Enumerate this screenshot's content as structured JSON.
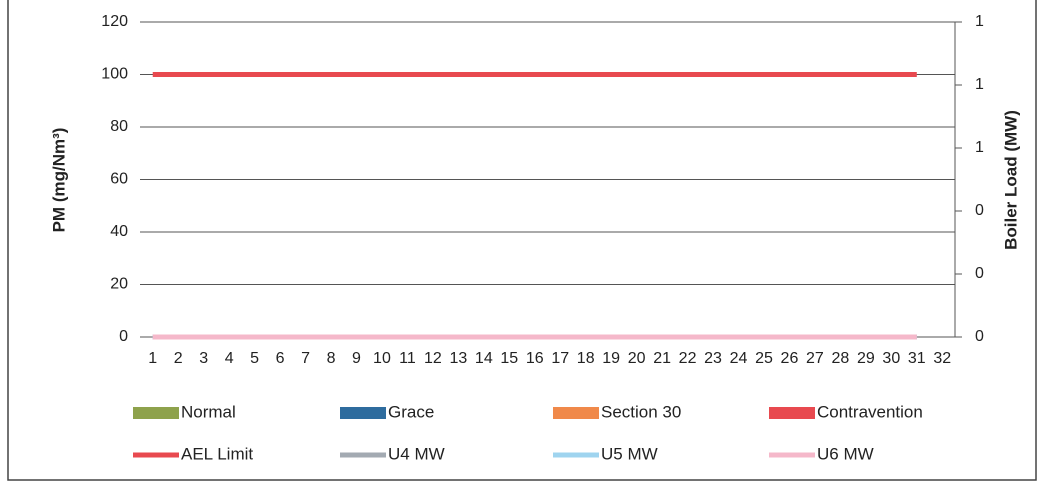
{
  "chart_data": {
    "type": "bar",
    "categories": [
      "1",
      "2",
      "3",
      "4",
      "5",
      "6",
      "7",
      "8",
      "9",
      "10",
      "11",
      "12",
      "13",
      "14",
      "15",
      "16",
      "17",
      "18",
      "19",
      "20",
      "21",
      "22",
      "23",
      "24",
      "25",
      "26",
      "27",
      "28",
      "29",
      "30",
      "31",
      "32"
    ],
    "ylabel": "PM (mg/Nm³)",
    "y2label": "Boiler Load (MW)",
    "ylim": [
      0,
      120
    ],
    "yticks": [
      0,
      20,
      40,
      60,
      80,
      100,
      120
    ],
    "y2lim": [
      0,
      1
    ],
    "y2ticks": [
      0,
      {
        "value": 0.2,
        "label": "0"
      },
      {
        "value": 0.4,
        "label": "0"
      },
      {
        "value": 0.6,
        "label": "1"
      },
      {
        "value": 0.8,
        "label": "1"
      },
      1
    ],
    "grid": true,
    "series": [
      {
        "name": "Normal",
        "type": "bar",
        "color": "#8ea24c",
        "values": [
          0,
          0,
          0,
          0,
          0,
          0,
          0,
          0,
          0,
          0,
          0,
          0,
          0,
          0,
          0,
          0,
          0,
          0,
          0,
          0,
          0,
          0,
          0,
          0,
          0,
          0,
          0,
          0,
          0,
          0,
          0,
          null
        ]
      },
      {
        "name": "Grace",
        "type": "bar",
        "color": "#2e6c9e",
        "values": [
          0,
          0,
          0,
          0,
          0,
          0,
          0,
          0,
          0,
          0,
          0,
          0,
          0,
          0,
          0,
          0,
          0,
          0,
          0,
          0,
          0,
          0,
          0,
          0,
          0,
          0,
          0,
          0,
          0,
          0,
          0,
          null
        ]
      },
      {
        "name": "Section 30",
        "type": "bar",
        "color": "#f0894a",
        "values": [
          0,
          0,
          0,
          0,
          0,
          0,
          0,
          0,
          0,
          0,
          0,
          0,
          0,
          0,
          0,
          0,
          0,
          0,
          0,
          0,
          0,
          0,
          0,
          0,
          0,
          0,
          0,
          0,
          0,
          0,
          0,
          null
        ]
      },
      {
        "name": "Contravention",
        "type": "bar",
        "color": "#e8494f",
        "values": [
          0,
          0,
          0,
          0,
          0,
          0,
          0,
          0,
          0,
          0,
          0,
          0,
          0,
          0,
          0,
          0,
          0,
          0,
          0,
          0,
          0,
          0,
          0,
          0,
          0,
          0,
          0,
          0,
          0,
          0,
          0,
          null
        ]
      },
      {
        "name": "AEL Limit",
        "type": "line",
        "color": "#e8494f",
        "values": [
          100,
          100,
          100,
          100,
          100,
          100,
          100,
          100,
          100,
          100,
          100,
          100,
          100,
          100,
          100,
          100,
          100,
          100,
          100,
          100,
          100,
          100,
          100,
          100,
          100,
          100,
          100,
          100,
          100,
          100,
          100,
          null
        ]
      },
      {
        "name": "U4 MW",
        "type": "line",
        "axis": "y2",
        "color": "#a3aab2",
        "values": [
          0,
          0,
          0,
          0,
          0,
          0,
          0,
          0,
          0,
          0,
          0,
          0,
          0,
          0,
          0,
          0,
          0,
          0,
          0,
          0,
          0,
          0,
          0,
          0,
          0,
          0,
          0,
          0,
          0,
          0,
          0,
          null
        ]
      },
      {
        "name": "U5 MW",
        "type": "line",
        "axis": "y2",
        "color": "#9fd4ef",
        "values": [
          0,
          0,
          0,
          0,
          0,
          0,
          0,
          0,
          0,
          0,
          0,
          0,
          0,
          0,
          0,
          0,
          0,
          0,
          0,
          0,
          0,
          0,
          0,
          0,
          0,
          0,
          0,
          0,
          0,
          0,
          0,
          null
        ]
      },
      {
        "name": "U6 MW",
        "type": "line",
        "axis": "y2",
        "color": "#f5b8ca",
        "values": [
          0,
          0,
          0,
          0,
          0,
          0,
          0,
          0,
          0,
          0,
          0,
          0,
          0,
          0,
          0,
          0,
          0,
          0,
          0,
          0,
          0,
          0,
          0,
          0,
          0,
          0,
          0,
          0,
          0,
          0,
          0,
          null
        ]
      }
    ]
  }
}
